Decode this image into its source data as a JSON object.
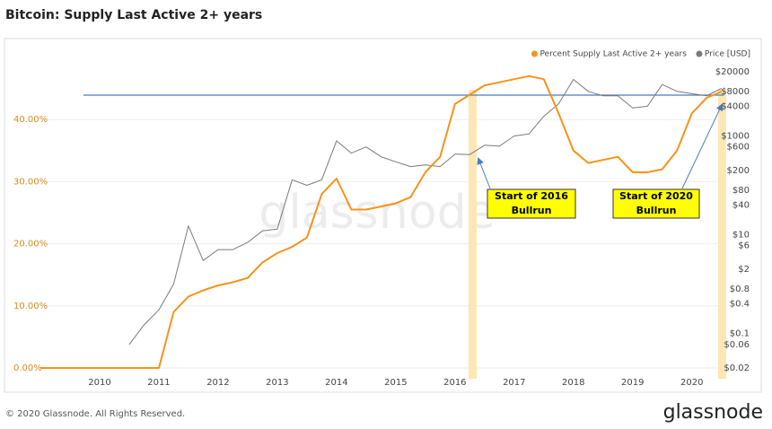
{
  "chart_data": {
    "type": "line",
    "title": "Bitcoin: Supply Last Active 2+ years",
    "watermark": "glassnode",
    "footer": "© 2020 Glassnode. All Rights Reserved.",
    "logo": "glassnode",
    "annotations": [
      [
        "Start of 2016",
        "Bullrun"
      ],
      [
        "Start of 2020",
        "Bullrun"
      ]
    ],
    "x": [
      2009,
      2009.25,
      2009.5,
      2009.75,
      2010,
      2010.25,
      2010.5,
      2010.75,
      2011,
      2011.25,
      2011.5,
      2011.75,
      2012,
      2012.25,
      2012.5,
      2012.75,
      2013,
      2013.25,
      2013.5,
      2013.75,
      2014,
      2014.25,
      2014.5,
      2014.75,
      2015,
      2015.25,
      2015.5,
      2015.75,
      2016,
      2016.25,
      2016.5,
      2016.75,
      2017,
      2017.25,
      2017.5,
      2017.75,
      2018,
      2018.25,
      2018.5,
      2018.75,
      2019,
      2019.25,
      2019.5,
      2019.75,
      2020,
      2020.25,
      2020.5
    ],
    "series": [
      {
        "name": "Percent Supply Last Active 2+ years",
        "color": "#f7931a",
        "axis": "y",
        "values": [
          0,
          0,
          0,
          0,
          0,
          0,
          0,
          0,
          0,
          9,
          11.5,
          12.5,
          13.3,
          13.8,
          14.5,
          17,
          18.5,
          19.5,
          21,
          28,
          30.5,
          25.5,
          25.5,
          26,
          26.5,
          27.5,
          31.5,
          34,
          42.5,
          44,
          45.5,
          46,
          46.5,
          47,
          46.5,
          41,
          35,
          33,
          33.5,
          34,
          31.5,
          31.5,
          32,
          35,
          41,
          43.5,
          44.5
        ]
      },
      {
        "name": "Price [USD]",
        "color": "#7a7a7a",
        "axis": "y2",
        "values": [
          null,
          null,
          null,
          null,
          null,
          null,
          0.06,
          0.15,
          0.3,
          1,
          15,
          3,
          5,
          5,
          7,
          12,
          13,
          130,
          100,
          130,
          800,
          450,
          600,
          380,
          300,
          240,
          260,
          240,
          430,
          420,
          650,
          620,
          1000,
          1100,
          2500,
          4500,
          14000,
          8000,
          6500,
          6500,
          3700,
          4000,
          11000,
          8000,
          7200,
          6500,
          9200
        ]
      }
    ],
    "xlim": [
      2009,
      2021.05
    ],
    "xticks": [
      2010,
      2011,
      2012,
      2013,
      2014,
      2015,
      2016,
      2017,
      2018,
      2019,
      2020
    ],
    "ylim": [
      0,
      50
    ],
    "yticks": [
      {
        "value": 0,
        "label": "0.00%"
      },
      {
        "value": 10,
        "label": "10.00%"
      },
      {
        "value": 20,
        "label": "20.00%"
      },
      {
        "value": 30,
        "label": "30.00%"
      },
      {
        "value": 40,
        "label": "40.00%"
      }
    ],
    "y2lim": [
      0.02,
      39000
    ],
    "y2_log": true,
    "y2ticks": [
      {
        "value": 0.02,
        "label": "$0.02"
      },
      {
        "value": 0.06,
        "label": "$0.06"
      },
      {
        "value": 0.1,
        "label": "$0.1"
      },
      {
        "value": 0.4,
        "label": "$0.4"
      },
      {
        "value": 0.8,
        "label": "$0.8"
      },
      {
        "value": 2,
        "label": "$2"
      },
      {
        "value": 6,
        "label": "$6"
      },
      {
        "value": 10,
        "label": "$10"
      },
      {
        "value": 40,
        "label": "$40"
      },
      {
        "value": 80,
        "label": "$80"
      },
      {
        "value": 200,
        "label": "$200"
      },
      {
        "value": 600,
        "label": "$600"
      },
      {
        "value": 1000,
        "label": "$1000"
      },
      {
        "value": 4000,
        "label": "$4000"
      },
      {
        "value": 8000,
        "label": "$8000"
      },
      {
        "value": 20000,
        "label": "$20000"
      }
    ],
    "grid": true,
    "ytick_color": "#d98a1e",
    "legend": "top-right"
  }
}
